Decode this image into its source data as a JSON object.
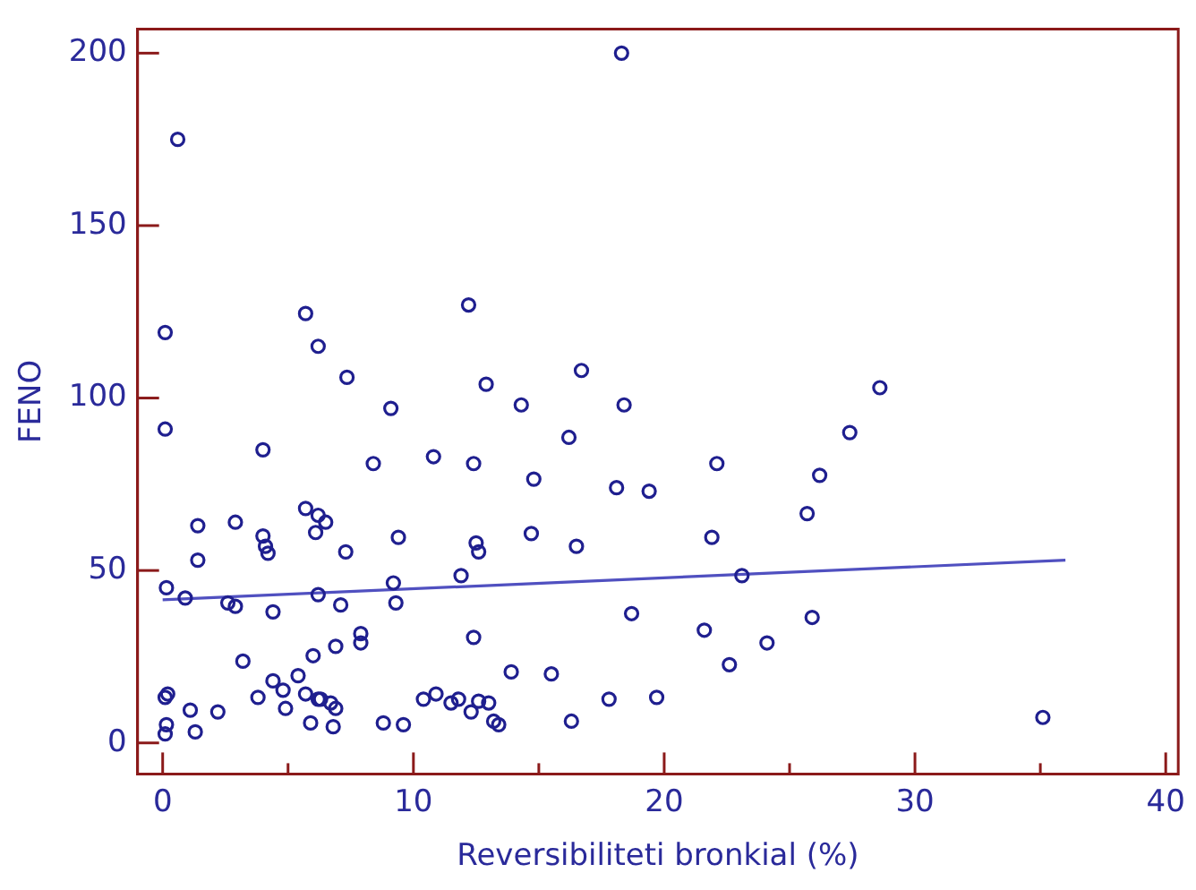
{
  "chart_data": {
    "type": "scatter",
    "xlabel": "Reversibiliteti bronkial (%)",
    "ylabel": "FENO",
    "xlim": [
      -1,
      40.5
    ],
    "ylim": [
      -9,
      207
    ],
    "xticks": [
      0,
      {
        "value": 5,
        "label": null
      },
      10,
      {
        "value": 15,
        "label": null
      },
      20,
      {
        "value": 25,
        "label": null
      },
      30,
      {
        "value": 35,
        "label": null
      },
      40
    ],
    "yticks": [
      0,
      50,
      100,
      150,
      200
    ],
    "grid": false,
    "legend": false,
    "marker": "circle",
    "series": [
      {
        "color": "#1f1f8f",
        "x": [
          0.6,
          18.3,
          0.1,
          5.7,
          12.2,
          6.2,
          7.35,
          16.7,
          12.9,
          28.6,
          14.3,
          18.4,
          9.1,
          0.1,
          27.4,
          16.2,
          4.0,
          10.8,
          8.4,
          12.4,
          22.1,
          14.8,
          26.2,
          18.1,
          19.4,
          25.7,
          5.7,
          6.2,
          6.5,
          1.4,
          2.9,
          6.1,
          4.0,
          4.1,
          9.4,
          21.9,
          14.7,
          12.5,
          12.6,
          7.3,
          4.2,
          1.4,
          16.5,
          11.9,
          9.2,
          23.1,
          0.15,
          0.9,
          2.6,
          2.9,
          4.4,
          6.2,
          9.3,
          7.1,
          18.7,
          21.6,
          25.9,
          7.9,
          7.9,
          6.9,
          12.4,
          24.1,
          3.2,
          6.0,
          13.9,
          15.5,
          22.6,
          4.4,
          5.4,
          4.8,
          5.7,
          6.2,
          3.8,
          0.1,
          0.2,
          1.1,
          2.2,
          4.9,
          6.3,
          6.9,
          6.7,
          10.4,
          10.9,
          11.5,
          11.8,
          12.3,
          12.6,
          13.0,
          13.2,
          13.4,
          9.6,
          8.8,
          17.8,
          19.7,
          16.3,
          5.9,
          6.8,
          0.15,
          0.1,
          1.3,
          35.1
        ],
        "values": [
          175,
          200,
          119,
          124.5,
          127,
          115,
          106,
          108,
          104,
          103,
          98,
          98,
          97,
          91,
          90,
          88.6,
          85,
          83,
          81,
          81,
          81,
          76.5,
          77.6,
          74,
          73,
          66.5,
          68,
          66,
          64,
          63,
          64,
          61,
          60,
          57,
          59.6,
          59.6,
          60.7,
          58,
          55.4,
          55.4,
          55,
          53,
          57,
          48.5,
          46.4,
          48.5,
          45,
          42,
          40.6,
          39.6,
          38,
          43,
          40.6,
          40,
          37.5,
          32.7,
          36.4,
          31.7,
          29,
          28,
          30.6,
          29,
          23.7,
          25.3,
          20.6,
          20,
          22.7,
          18,
          19.5,
          15.3,
          14.2,
          12.7,
          13.2,
          13.2,
          14.2,
          9.5,
          9,
          10,
          12.7,
          10,
          11.6,
          12.7,
          14.2,
          11.6,
          12.7,
          9,
          12.1,
          11.6,
          6.3,
          5.3,
          5.3,
          5.8,
          12.7,
          13.2,
          6.3,
          5.8,
          4.7,
          5.3,
          2.6,
          3.2,
          7.4
        ]
      },
      {
        "type": "line",
        "color": "#5050c0",
        "marker": "none",
        "x": [
          0,
          36
        ],
        "values": [
          41.5,
          53
        ]
      }
    ]
  }
}
